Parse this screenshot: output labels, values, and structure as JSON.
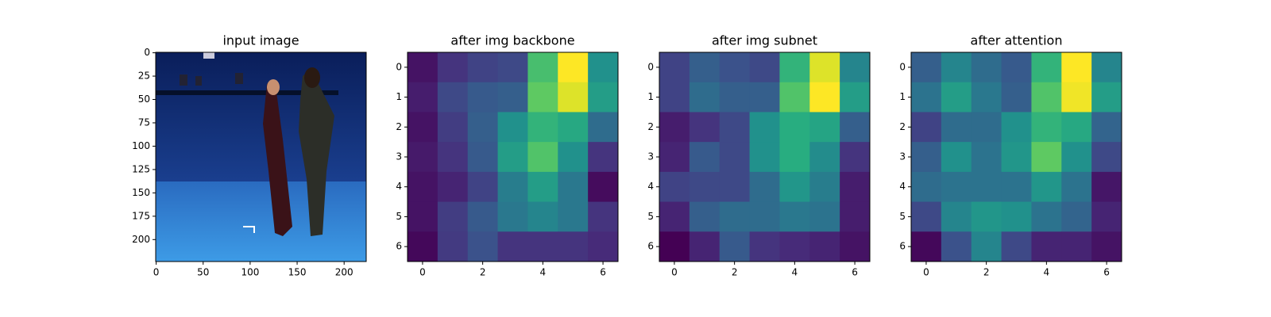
{
  "chart_data": [
    {
      "type": "image",
      "title": "input image",
      "xlim": [
        -0.5,
        223.5
      ],
      "ylim": [
        223.5,
        -0.5
      ],
      "xticks": [
        0,
        50,
        100,
        150,
        200
      ],
      "yticks": [
        0,
        25,
        50,
        75,
        100,
        125,
        150,
        175,
        200
      ]
    },
    {
      "type": "heatmap",
      "title": "after img backbone",
      "colormap": "viridis",
      "clim": [
        0,
        1
      ],
      "xlim": [
        -0.5,
        6.5
      ],
      "ylim": [
        6.5,
        -0.5
      ],
      "xticks": [
        0,
        2,
        4,
        6
      ],
      "yticks": [
        0,
        1,
        2,
        3,
        4,
        5,
        6
      ],
      "values": [
        [
          0.05,
          0.15,
          0.2,
          0.22,
          0.7,
          1.0,
          0.5
        ],
        [
          0.08,
          0.22,
          0.28,
          0.3,
          0.75,
          0.95,
          0.55
        ],
        [
          0.05,
          0.18,
          0.3,
          0.5,
          0.65,
          0.6,
          0.35
        ],
        [
          0.07,
          0.15,
          0.28,
          0.55,
          0.72,
          0.5,
          0.15
        ],
        [
          0.05,
          0.1,
          0.2,
          0.42,
          0.55,
          0.4,
          0.03
        ],
        [
          0.05,
          0.18,
          0.28,
          0.4,
          0.45,
          0.4,
          0.15
        ],
        [
          0.02,
          0.17,
          0.25,
          0.15,
          0.15,
          0.15,
          0.12
        ]
      ]
    },
    {
      "type": "heatmap",
      "title": "after img subnet",
      "colormap": "viridis",
      "clim": [
        0,
        1
      ],
      "xlim": [
        -0.5,
        6.5
      ],
      "ylim": [
        6.5,
        -0.5
      ],
      "xticks": [
        0,
        2,
        4,
        6
      ],
      "yticks": [
        0,
        1,
        2,
        3,
        4,
        5,
        6
      ],
      "values": [
        [
          0.2,
          0.3,
          0.25,
          0.22,
          0.65,
          0.95,
          0.45
        ],
        [
          0.2,
          0.35,
          0.3,
          0.3,
          0.72,
          1.0,
          0.55
        ],
        [
          0.08,
          0.15,
          0.22,
          0.5,
          0.62,
          0.58,
          0.3
        ],
        [
          0.1,
          0.28,
          0.22,
          0.5,
          0.62,
          0.48,
          0.15
        ],
        [
          0.2,
          0.22,
          0.22,
          0.35,
          0.52,
          0.42,
          0.08
        ],
        [
          0.1,
          0.3,
          0.35,
          0.35,
          0.4,
          0.38,
          0.08
        ],
        [
          0.0,
          0.1,
          0.28,
          0.15,
          0.12,
          0.1,
          0.05
        ]
      ]
    },
    {
      "type": "heatmap",
      "title": "after attention",
      "colormap": "viridis",
      "clim": [
        0,
        1
      ],
      "xlim": [
        -0.5,
        6.5
      ],
      "ylim": [
        6.5,
        -0.5
      ],
      "xticks": [
        0,
        2,
        4,
        6
      ],
      "yticks": [
        0,
        1,
        2,
        3,
        4,
        5,
        6
      ],
      "values": [
        [
          0.3,
          0.45,
          0.35,
          0.28,
          0.65,
          1.0,
          0.45
        ],
        [
          0.38,
          0.55,
          0.4,
          0.3,
          0.72,
          0.98,
          0.55
        ],
        [
          0.2,
          0.35,
          0.35,
          0.5,
          0.65,
          0.6,
          0.32
        ],
        [
          0.3,
          0.5,
          0.38,
          0.52,
          0.75,
          0.5,
          0.22
        ],
        [
          0.35,
          0.38,
          0.38,
          0.38,
          0.52,
          0.38,
          0.06
        ],
        [
          0.22,
          0.45,
          0.52,
          0.5,
          0.38,
          0.32,
          0.1
        ],
        [
          0.02,
          0.25,
          0.45,
          0.22,
          0.1,
          0.1,
          0.05
        ]
      ]
    }
  ]
}
